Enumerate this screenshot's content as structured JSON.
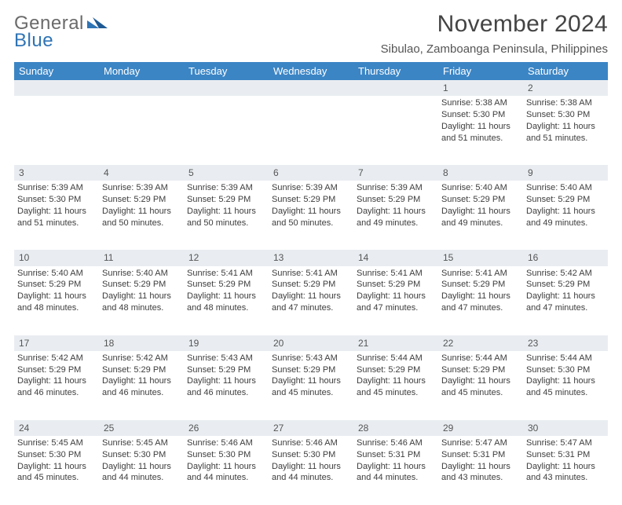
{
  "logo": {
    "line1": "General",
    "line2": "Blue"
  },
  "header": {
    "title": "November 2024",
    "subtitle": "Sibulao, Zamboanga Peninsula, Philippines"
  },
  "colors": {
    "header_bg": "#3b85c5",
    "header_text": "#ffffff",
    "daynum_bg": "#e9edf1",
    "text": "#3d3d3d",
    "logo_gray": "#6a6a6a",
    "logo_blue": "#2f74b5"
  },
  "weekdays": [
    "Sunday",
    "Monday",
    "Tuesday",
    "Wednesday",
    "Thursday",
    "Friday",
    "Saturday"
  ],
  "weeks": [
    [
      null,
      null,
      null,
      null,
      null,
      {
        "n": "1",
        "sr": "Sunrise: 5:38 AM",
        "ss": "Sunset: 5:30 PM",
        "dl": "Daylight: 11 hours and 51 minutes."
      },
      {
        "n": "2",
        "sr": "Sunrise: 5:38 AM",
        "ss": "Sunset: 5:30 PM",
        "dl": "Daylight: 11 hours and 51 minutes."
      }
    ],
    [
      {
        "n": "3",
        "sr": "Sunrise: 5:39 AM",
        "ss": "Sunset: 5:30 PM",
        "dl": "Daylight: 11 hours and 51 minutes."
      },
      {
        "n": "4",
        "sr": "Sunrise: 5:39 AM",
        "ss": "Sunset: 5:29 PM",
        "dl": "Daylight: 11 hours and 50 minutes."
      },
      {
        "n": "5",
        "sr": "Sunrise: 5:39 AM",
        "ss": "Sunset: 5:29 PM",
        "dl": "Daylight: 11 hours and 50 minutes."
      },
      {
        "n": "6",
        "sr": "Sunrise: 5:39 AM",
        "ss": "Sunset: 5:29 PM",
        "dl": "Daylight: 11 hours and 50 minutes."
      },
      {
        "n": "7",
        "sr": "Sunrise: 5:39 AM",
        "ss": "Sunset: 5:29 PM",
        "dl": "Daylight: 11 hours and 49 minutes."
      },
      {
        "n": "8",
        "sr": "Sunrise: 5:40 AM",
        "ss": "Sunset: 5:29 PM",
        "dl": "Daylight: 11 hours and 49 minutes."
      },
      {
        "n": "9",
        "sr": "Sunrise: 5:40 AM",
        "ss": "Sunset: 5:29 PM",
        "dl": "Daylight: 11 hours and 49 minutes."
      }
    ],
    [
      {
        "n": "10",
        "sr": "Sunrise: 5:40 AM",
        "ss": "Sunset: 5:29 PM",
        "dl": "Daylight: 11 hours and 48 minutes."
      },
      {
        "n": "11",
        "sr": "Sunrise: 5:40 AM",
        "ss": "Sunset: 5:29 PM",
        "dl": "Daylight: 11 hours and 48 minutes."
      },
      {
        "n": "12",
        "sr": "Sunrise: 5:41 AM",
        "ss": "Sunset: 5:29 PM",
        "dl": "Daylight: 11 hours and 48 minutes."
      },
      {
        "n": "13",
        "sr": "Sunrise: 5:41 AM",
        "ss": "Sunset: 5:29 PM",
        "dl": "Daylight: 11 hours and 47 minutes."
      },
      {
        "n": "14",
        "sr": "Sunrise: 5:41 AM",
        "ss": "Sunset: 5:29 PM",
        "dl": "Daylight: 11 hours and 47 minutes."
      },
      {
        "n": "15",
        "sr": "Sunrise: 5:41 AM",
        "ss": "Sunset: 5:29 PM",
        "dl": "Daylight: 11 hours and 47 minutes."
      },
      {
        "n": "16",
        "sr": "Sunrise: 5:42 AM",
        "ss": "Sunset: 5:29 PM",
        "dl": "Daylight: 11 hours and 47 minutes."
      }
    ],
    [
      {
        "n": "17",
        "sr": "Sunrise: 5:42 AM",
        "ss": "Sunset: 5:29 PM",
        "dl": "Daylight: 11 hours and 46 minutes."
      },
      {
        "n": "18",
        "sr": "Sunrise: 5:42 AM",
        "ss": "Sunset: 5:29 PM",
        "dl": "Daylight: 11 hours and 46 minutes."
      },
      {
        "n": "19",
        "sr": "Sunrise: 5:43 AM",
        "ss": "Sunset: 5:29 PM",
        "dl": "Daylight: 11 hours and 46 minutes."
      },
      {
        "n": "20",
        "sr": "Sunrise: 5:43 AM",
        "ss": "Sunset: 5:29 PM",
        "dl": "Daylight: 11 hours and 45 minutes."
      },
      {
        "n": "21",
        "sr": "Sunrise: 5:44 AM",
        "ss": "Sunset: 5:29 PM",
        "dl": "Daylight: 11 hours and 45 minutes."
      },
      {
        "n": "22",
        "sr": "Sunrise: 5:44 AM",
        "ss": "Sunset: 5:29 PM",
        "dl": "Daylight: 11 hours and 45 minutes."
      },
      {
        "n": "23",
        "sr": "Sunrise: 5:44 AM",
        "ss": "Sunset: 5:30 PM",
        "dl": "Daylight: 11 hours and 45 minutes."
      }
    ],
    [
      {
        "n": "24",
        "sr": "Sunrise: 5:45 AM",
        "ss": "Sunset: 5:30 PM",
        "dl": "Daylight: 11 hours and 45 minutes."
      },
      {
        "n": "25",
        "sr": "Sunrise: 5:45 AM",
        "ss": "Sunset: 5:30 PM",
        "dl": "Daylight: 11 hours and 44 minutes."
      },
      {
        "n": "26",
        "sr": "Sunrise: 5:46 AM",
        "ss": "Sunset: 5:30 PM",
        "dl": "Daylight: 11 hours and 44 minutes."
      },
      {
        "n": "27",
        "sr": "Sunrise: 5:46 AM",
        "ss": "Sunset: 5:30 PM",
        "dl": "Daylight: 11 hours and 44 minutes."
      },
      {
        "n": "28",
        "sr": "Sunrise: 5:46 AM",
        "ss": "Sunset: 5:31 PM",
        "dl": "Daylight: 11 hours and 44 minutes."
      },
      {
        "n": "29",
        "sr": "Sunrise: 5:47 AM",
        "ss": "Sunset: 5:31 PM",
        "dl": "Daylight: 11 hours and 43 minutes."
      },
      {
        "n": "30",
        "sr": "Sunrise: 5:47 AM",
        "ss": "Sunset: 5:31 PM",
        "dl": "Daylight: 11 hours and 43 minutes."
      }
    ]
  ]
}
